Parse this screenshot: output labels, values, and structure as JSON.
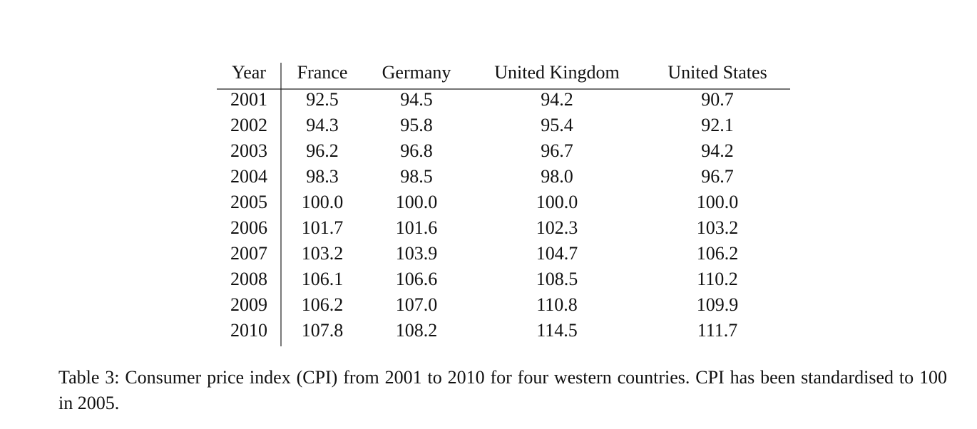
{
  "table": {
    "headers": [
      "Year",
      "France",
      "Germany",
      "United Kingdom",
      "United States"
    ],
    "rows": [
      [
        "2001",
        "92.5",
        "94.5",
        "94.2",
        "90.7"
      ],
      [
        "2002",
        "94.3",
        "95.8",
        "95.4",
        "92.1"
      ],
      [
        "2003",
        "96.2",
        "96.8",
        "96.7",
        "94.2"
      ],
      [
        "2004",
        "98.3",
        "98.5",
        "98.0",
        "96.7"
      ],
      [
        "2005",
        "100.0",
        "100.0",
        "100.0",
        "100.0"
      ],
      [
        "2006",
        "101.7",
        "101.6",
        "102.3",
        "103.2"
      ],
      [
        "2007",
        "103.2",
        "103.9",
        "104.7",
        "106.2"
      ],
      [
        "2008",
        "106.1",
        "106.6",
        "108.5",
        "110.2"
      ],
      [
        "2009",
        "106.2",
        "107.0",
        "110.8",
        "109.9"
      ],
      [
        "2010",
        "107.8",
        "108.2",
        "114.5",
        "111.7"
      ]
    ],
    "caption": "Table 3: Consumer price index (CPI) from 2001 to 2010 for four western countries. CPI has been standardised to 100 in 2005."
  }
}
